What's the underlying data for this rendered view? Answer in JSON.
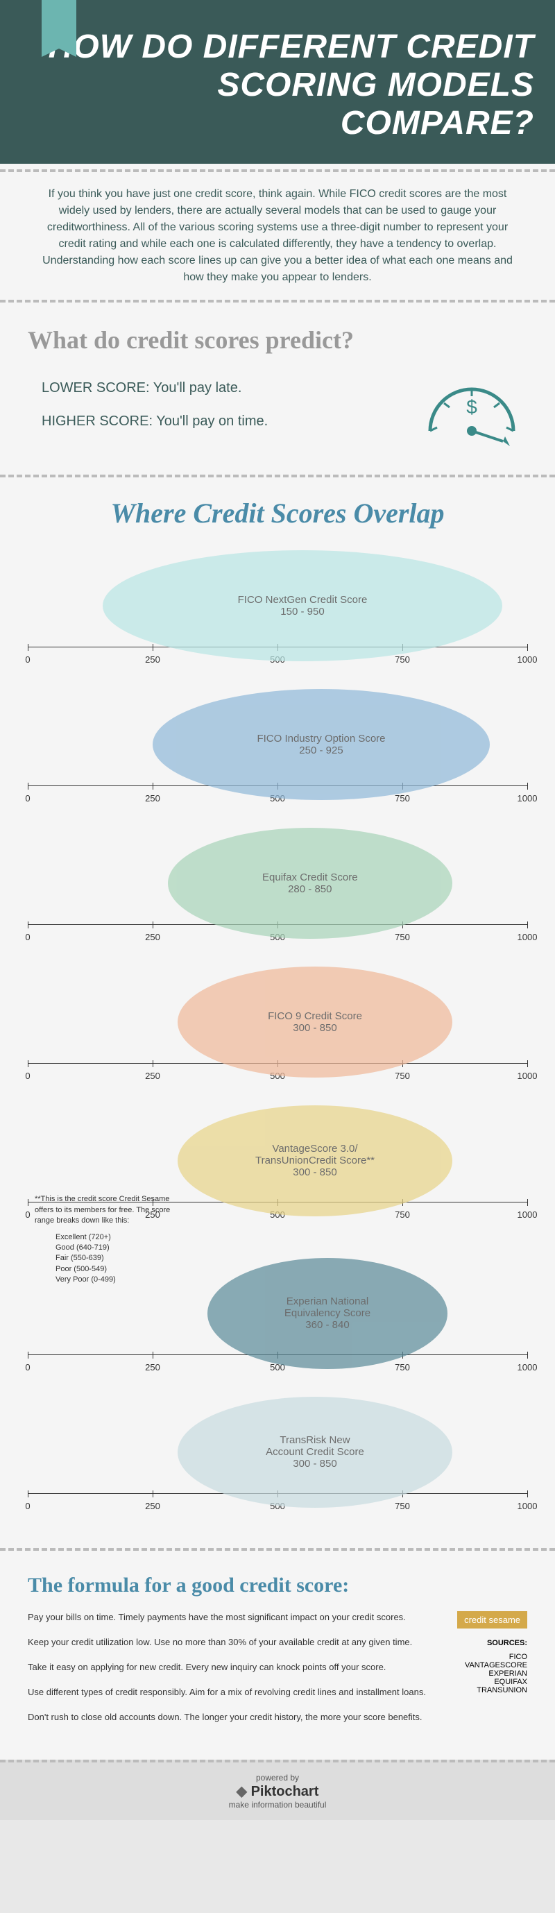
{
  "header": {
    "title": "HOW DO DIFFERENT CREDIT SCORING MODELS COMPARE?"
  },
  "intro": "If you think you have just one credit score, think again. While FICO credit scores are the most widely used by lenders, there are actually several models that can be used to gauge your creditworthiness. All of the various scoring systems use a three-digit number to represent your credit rating and while each one is calculated differently, they have a tendency to overlap. Understanding how each score lines up can give you a better idea of what each one means and how they make you appear to lenders.",
  "predict": {
    "title": "What do credit scores predict?",
    "lower": "LOWER SCORE: You'll pay late.",
    "higher": "HIGHER SCORE: You'll pay on time."
  },
  "overlap": {
    "title": "Where Credit Scores Overlap",
    "axis": {
      "min": 0,
      "max": 1000,
      "ticks": [
        0,
        250,
        500,
        750,
        1000
      ]
    },
    "models": [
      {
        "name": "FICO NextGen Credit Score",
        "range": "150 - 950",
        "min": 150,
        "max": 950,
        "color": "#b8e6e4"
      },
      {
        "name": "FICO Industry Option Score",
        "range": "250 - 925",
        "min": 250,
        "max": 925,
        "color": "#8fb8d8"
      },
      {
        "name": "Equifax Credit Score",
        "range": "280 - 850",
        "min": 280,
        "max": 850,
        "color": "#a8d4b8"
      },
      {
        "name": "FICO 9 Credit Score",
        "range": "300 - 850",
        "min": 300,
        "max": 850,
        "color": "#f0b898"
      },
      {
        "name": "VantageScore 3.0/\nTransUnionCredit Score**",
        "range": "300 - 850",
        "min": 300,
        "max": 850,
        "color": "#e8d488"
      },
      {
        "name": "Experian National\nEquivalency Score",
        "range": "360 - 840",
        "min": 360,
        "max": 840,
        "color": "#5a8a98"
      },
      {
        "name": "TransRisk New\nAccount Credit Score",
        "range": "300 - 850",
        "min": 300,
        "max": 850,
        "color": "#c8dce0"
      }
    ],
    "footnote": {
      "intro": "**This is the credit score Credit Sesame  offers to its members for free. The score range breaks down like this:",
      "ranges": [
        "Excellent (720+)",
        "Good (640-719)",
        "Fair (550-639)",
        "Poor (500-549)",
        "Very Poor (0-499)"
      ]
    }
  },
  "formula": {
    "title": "The formula for a good credit score:",
    "tips": [
      "Pay your bills on time. Timely payments have the most significant impact on your credit scores.",
      "Keep your credit utilization low. Use no more than 30% of your available credit at any given time.",
      "Take it easy on applying for new credit. Every new inquiry can knock points off your score.",
      "Use different types of credit responsibly. Aim for a mix of revolving credit lines and installment loans.",
      "Don't rush to close old accounts down. The longer your credit history, the more your score benefits."
    ]
  },
  "sources": {
    "badge": "credit sesame",
    "label": "SOURCES:",
    "list": [
      "FICO",
      "VANTAGESCORE",
      "EXPERIAN",
      "EQUIFAX",
      "TRANSUNION"
    ]
  },
  "footer": {
    "powered": "powered by",
    "brand": "Piktochart",
    "tag": "make information beautiful"
  }
}
